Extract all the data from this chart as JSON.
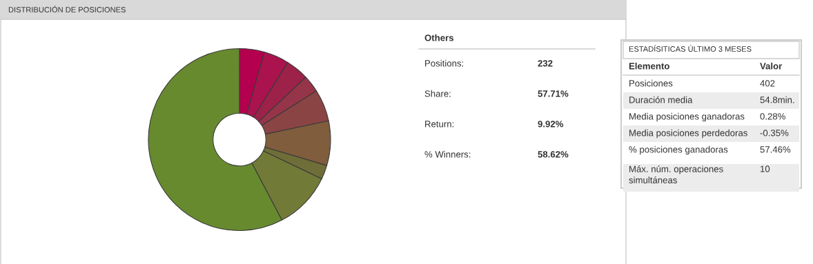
{
  "chart_data": [
    {
      "type": "donut",
      "title": "DISTRIBUCIÓN DE POSICIONES",
      "categories": [
        null,
        null,
        null,
        null,
        null,
        null,
        null,
        null,
        null
      ],
      "values": [
        4.4,
        4.5,
        4.1,
        3.0,
        5.7,
        7.9,
        2.5,
        10.2,
        57.7
      ],
      "colors": [
        "#b5004f",
        "#aa134e",
        "#9c2249",
        "#963549",
        "#8b4444",
        "#7f5d3d",
        "#6f6e38",
        "#727a37",
        "#678a2f"
      ]
    },
    {
      "type": "other",
      "title": "Others",
      "annotations": [
        "Positions:",
        "232",
        "Share:",
        "57.71%",
        "Return:",
        "9.92%",
        "% Winners:",
        "58.62%"
      ]
    },
    {
      "type": "other",
      "title": "ESTADÍSITICAS ÚLTIMO 3 MESES",
      "annotations": [
        "Elemento",
        "Valor",
        "Posiciones",
        "402",
        "Duración media",
        "54.8min.",
        "Media posiciones ganadoras",
        "0.28%",
        "Media posiciones perdedoras",
        "-0.35%",
        "% posiciones ganadoras",
        "57.46%",
        "Máx. núm. operaciones\nsimultáneas",
        "10"
      ]
    }
  ]
}
